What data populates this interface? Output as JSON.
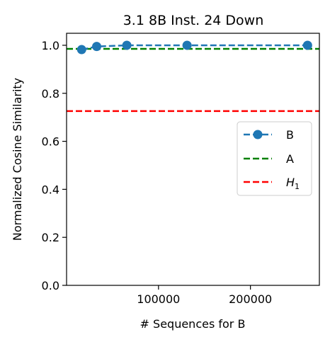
{
  "chart_data": {
    "type": "line",
    "title": "3.1 8B Inst. 24 Down",
    "xlabel": "# Sequences for B",
    "ylabel": "Normalized Cosine Similarity",
    "xlim": [
      0,
      275000
    ],
    "ylim": [
      0.0,
      1.05
    ],
    "x_ticks": [
      100000,
      200000
    ],
    "x_tick_labels": [
      "100000",
      "200000"
    ],
    "y_ticks": [
      0.0,
      0.2,
      0.4,
      0.6,
      0.8,
      1.0
    ],
    "y_tick_labels": [
      "0.0",
      "0.2",
      "0.4",
      "0.6",
      "0.8",
      "1.0"
    ],
    "grid": false,
    "legend_position": "center-right",
    "series": [
      {
        "name": "B",
        "style": "dashed-line-with-markers",
        "color": "#1f77b4",
        "x": [
          16384,
          32768,
          65536,
          131072,
          262144
        ],
        "y": [
          0.982,
          0.995,
          1.0,
          1.0,
          1.0
        ]
      },
      {
        "name": "A",
        "style": "dashed-horizontal",
        "color": "#008000",
        "y": 0.985
      },
      {
        "name": "H",
        "name_subscript": "1",
        "style": "dashed-horizontal",
        "color": "#ff0000",
        "y": 0.726
      }
    ]
  }
}
